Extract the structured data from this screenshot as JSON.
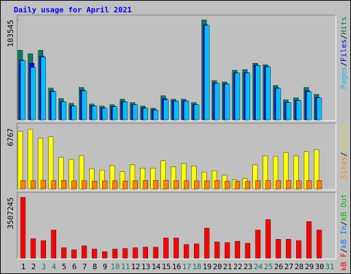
{
  "chart_data": {
    "type": "bar",
    "title": "Daily usage for April 2021",
    "separator": "/",
    "categories": [
      "1",
      "2",
      "3",
      "4",
      "5",
      "6",
      "7",
      "8",
      "9",
      "10",
      "11",
      "12",
      "13",
      "14",
      "15",
      "16",
      "17",
      "18",
      "19",
      "20",
      "21",
      "22",
      "23",
      "24",
      "25",
      "26",
      "27",
      "28",
      "29",
      "30",
      "31"
    ],
    "category_colors": [
      "#000000",
      "#000000",
      "#00805c",
      "#00805c",
      "#000000",
      "#000000",
      "#000000",
      "#000000",
      "#000000",
      "#00805c",
      "#00805c",
      "#000000",
      "#000000",
      "#000000",
      "#000000",
      "#000000",
      "#00805c",
      "#00805c",
      "#000000",
      "#000000",
      "#000000",
      "#000000",
      "#000000",
      "#00805c",
      "#00805c",
      "#000000",
      "#000000",
      "#000000",
      "#000000",
      "#000000",
      "#00805c"
    ],
    "panels": [
      {
        "ylim": [
          0,
          103545
        ],
        "yticks": [
          103545
        ],
        "legend": [
          {
            "name": "Pages",
            "color": "#00c0ff"
          },
          {
            "name": "Files",
            "color": "#0000ff"
          },
          {
            "name": "Hits",
            "color": "#00805c"
          }
        ],
        "series": [
          {
            "name": "Hits",
            "color": "#00805c",
            "values": [
              72100,
              68500,
              72100,
              32800,
              22100,
              17100,
              33600,
              16400,
              14300,
              15700,
              21400,
              17900,
              14300,
              12100,
              25000,
              21400,
              21400,
              17900,
              103545,
              40700,
              39300,
              51400,
              52100,
              58600,
              57100,
              35700,
              20700,
              22900,
              33600,
              26400,
              null
            ]
          },
          {
            "name": "Files",
            "color": "#0000ff",
            "values": [
              62000,
              58800,
              66000,
              30000,
              19000,
              14600,
              30600,
              14600,
              12500,
              14000,
              19000,
              16000,
              12500,
              10400,
              22000,
              19600,
              19600,
              16000,
              98600,
              38200,
              37400,
              48900,
              49000,
              56800,
              55500,
              33200,
              18200,
              20400,
              30200,
              23200,
              null
            ]
          },
          {
            "name": "Pages",
            "color": "#00c0ff",
            "values": [
              61400,
              54300,
              65000,
              29300,
              18600,
              14300,
              30000,
              14300,
              12100,
              13600,
              18600,
              15700,
              12100,
              10000,
              20700,
              19300,
              19300,
              15700,
              97900,
              37900,
              37100,
              48600,
              48600,
              56400,
              55000,
              32800,
              17900,
              20000,
              29300,
              22900,
              null
            ]
          }
        ]
      },
      {
        "ylim": [
          0,
          6767
        ],
        "yticks": [
          6767
        ],
        "legend": [
          {
            "name": "Sites",
            "color": "#ff8000"
          },
          {
            "name": "Visits",
            "color": "#e0e000"
          }
        ],
        "series": [
          {
            "name": "Visits",
            "color": "#ffff00",
            "values": [
              6400,
              6620,
              5660,
              5800,
              3520,
              3270,
              3720,
              2250,
              2110,
              2620,
              1960,
              2690,
              2330,
              2330,
              3130,
              2470,
              2840,
              2550,
              1890,
              2040,
              1530,
              1020,
              1160,
              2690,
              3710,
              3640,
              4070,
              3710,
              4150,
              4370,
              null
            ]
          },
          {
            "name": "Sites",
            "color": "#ff8000",
            "values": [
              950,
              930,
              980,
              940,
              960,
              920,
              940,
              900,
              910,
              930,
              900,
              920,
              950,
              960,
              980,
              950,
              940,
              920,
              910,
              950,
              880,
              860,
              870,
              940,
              960,
              950,
              960,
              940,
              950,
              960,
              null
            ]
          }
        ]
      },
      {
        "ylim": [
          0,
          3507245
        ],
        "yticks": [
          3507245
        ],
        "legend": [
          {
            "name": "kB F",
            "color": "#ff0000"
          },
          {
            "name": "kB In",
            "color": "#0080ff"
          },
          {
            "name": "kB Out",
            "color": "#00c000"
          }
        ],
        "series": [
          {
            "name": "kB F",
            "color": "#ff0000",
            "values": [
              3507245,
              1131000,
              1018000,
              1622000,
              603000,
              490000,
              716000,
              528000,
              377000,
              528000,
              566000,
              603000,
              641000,
              641000,
              1169000,
              1169000,
              792000,
              830000,
              1735000,
              943000,
              905000,
              980000,
              867000,
              1622000,
              2225000,
              1094000,
              1094000,
              1018000,
              2112000,
              1622000,
              null
            ]
          }
        ]
      }
    ]
  }
}
